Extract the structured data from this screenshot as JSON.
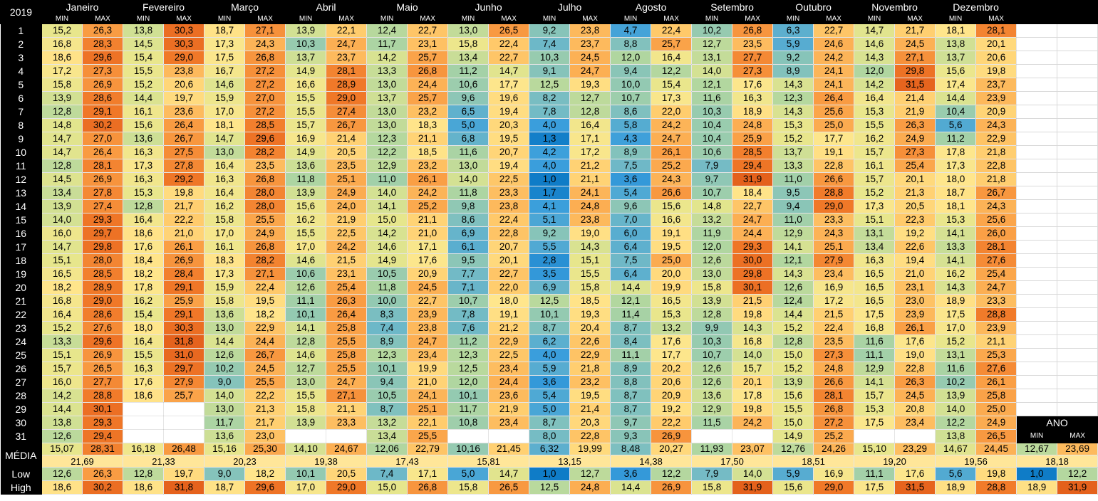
{
  "sheet": {
    "year_label": "2019",
    "months": [
      "Janeiro",
      "Fevereiro",
      "Março",
      "Abril",
      "Maio",
      "Junho",
      "Julho",
      "Agosto",
      "Setembro",
      "Outubro",
      "Novembro",
      "Dezembro"
    ],
    "min_label": "MIN",
    "max_label": "MAX",
    "days": [
      "1",
      "2",
      "3",
      "4",
      "5",
      "6",
      "7",
      "8",
      "9",
      "10",
      "11",
      "12",
      "13",
      "14",
      "15",
      "16",
      "17",
      "18",
      "19",
      "20",
      "21",
      "22",
      "23",
      "24",
      "25",
      "26",
      "27",
      "28",
      "29",
      "30",
      "31"
    ],
    "daily": [
      [
        "15,2",
        "26,3",
        "13,8",
        "30,3",
        "18,7",
        "27,1",
        "13,9",
        "22,1",
        "12,4",
        "22,7",
        "13,0",
        "26,5",
        "9,2",
        "23,8",
        "4,7",
        "22,4",
        "10,2",
        "26,8",
        "6,3",
        "22,7",
        "14,7",
        "21,7",
        "18,1",
        "28,1"
      ],
      [
        "16,8",
        "28,3",
        "14,5",
        "30,3",
        "17,3",
        "24,3",
        "10,3",
        "24,7",
        "11,7",
        "23,1",
        "15,8",
        "22,4",
        "7,4",
        "23,7",
        "8,8",
        "25,7",
        "12,7",
        "23,5",
        "5,9",
        "24,6",
        "14,6",
        "24,5",
        "13,8",
        "20,1"
      ],
      [
        "18,6",
        "29,6",
        "15,4",
        "29,0",
        "17,5",
        "26,8",
        "13,7",
        "23,7",
        "14,2",
        "25,7",
        "13,4",
        "22,7",
        "10,3",
        "24,5",
        "12,0",
        "16,4",
        "13,1",
        "27,7",
        "9,2",
        "24,2",
        "14,3",
        "27,1",
        "13,7",
        "20,6"
      ],
      [
        "17,2",
        "27,3",
        "15,5",
        "23,8",
        "16,7",
        "27,2",
        "14,9",
        "28,1",
        "13,3",
        "26,8",
        "11,2",
        "14,7",
        "9,1",
        "24,7",
        "9,4",
        "12,2",
        "14,0",
        "27,3",
        "8,9",
        "24,1",
        "12,0",
        "29,8",
        "15,6",
        "19,8"
      ],
      [
        "15,8",
        "26,9",
        "15,2",
        "20,6",
        "14,6",
        "27,2",
        "16,6",
        "28,9",
        "13,0",
        "24,4",
        "10,6",
        "17,7",
        "12,5",
        "19,3",
        "10,0",
        "15,4",
        "12,1",
        "17,6",
        "14,3",
        "24,1",
        "14,2",
        "31,5",
        "17,4",
        "23,7"
      ],
      [
        "13,9",
        "28,6",
        "14,4",
        "19,7",
        "15,9",
        "27,0",
        "15,5",
        "29,0",
        "13,7",
        "25,7",
        "9,6",
        "19,6",
        "8,2",
        "12,7",
        "10,7",
        "17,3",
        "11,6",
        "16,3",
        "12,3",
        "26,4",
        "16,4",
        "21,4",
        "14,4",
        "23,9"
      ],
      [
        "12,8",
        "29,1",
        "16,1",
        "23,6",
        "17,0",
        "27,2",
        "15,5",
        "27,4",
        "13,0",
        "23,2",
        "6,5",
        "19,4",
        "7,8",
        "12,8",
        "8,6",
        "22,0",
        "10,3",
        "18,9",
        "14,3",
        "25,6",
        "15,3",
        "21,9",
        "10,4",
        "20,9"
      ],
      [
        "14,8",
        "30,2",
        "15,6",
        "26,4",
        "18,1",
        "28,5",
        "15,7",
        "26,7",
        "13,0",
        "18,3",
        "5,0",
        "20,3",
        "4,0",
        "16,4",
        "5,8",
        "24,2",
        "10,4",
        "24,8",
        "15,3",
        "25,0",
        "15,5",
        "26,3",
        "5,6",
        "24,3"
      ],
      [
        "14,7",
        "27,0",
        "13,6",
        "26,7",
        "14,7",
        "29,6",
        "16,9",
        "21,4",
        "12,3",
        "21,1",
        "6,8",
        "19,5",
        "1,3",
        "17,1",
        "4,3",
        "24,7",
        "10,4",
        "25,9",
        "15,2",
        "17,7",
        "16,2",
        "24,9",
        "11,2",
        "22,9"
      ],
      [
        "14,7",
        "26,4",
        "16,3",
        "27,5",
        "13,0",
        "28,2",
        "14,9",
        "20,5",
        "12,2",
        "18,5",
        "11,6",
        "20,7",
        "4,2",
        "17,2",
        "8,9",
        "26,1",
        "10,6",
        "28,5",
        "13,7",
        "19,1",
        "15,7",
        "27,3",
        "17,8",
        "21,8"
      ],
      [
        "12,8",
        "28,1",
        "17,3",
        "27,8",
        "16,4",
        "23,5",
        "13,6",
        "23,5",
        "12,9",
        "23,2",
        "13,0",
        "19,4",
        "4,0",
        "21,2",
        "7,5",
        "25,2",
        "7,9",
        "29,4",
        "13,3",
        "22,8",
        "16,1",
        "25,4",
        "17,3",
        "22,8"
      ],
      [
        "14,5",
        "26,9",
        "16,3",
        "29,2",
        "16,3",
        "26,8",
        "11,8",
        "25,1",
        "11,0",
        "26,1",
        "14,0",
        "22,5",
        "1,0",
        "21,1",
        "3,6",
        "24,3",
        "9,7",
        "31,9",
        "11,0",
        "26,6",
        "15,7",
        "20,1",
        "18,0",
        "21,8"
      ],
      [
        "13,4",
        "27,8",
        "15,3",
        "19,8",
        "16,4",
        "28,0",
        "13,9",
        "24,9",
        "14,0",
        "24,2",
        "11,8",
        "23,3",
        "1,7",
        "24,1",
        "5,4",
        "26,6",
        "10,7",
        "18,4",
        "9,5",
        "28,8",
        "15,2",
        "21,3",
        "18,7",
        "26,7"
      ],
      [
        "13,9",
        "27,4",
        "12,8",
        "21,7",
        "16,2",
        "28,0",
        "15,6",
        "24,0",
        "14,1",
        "25,2",
        "9,8",
        "23,8",
        "4,1",
        "24,8",
        "9,6",
        "15,6",
        "14,8",
        "22,7",
        "9,4",
        "29,0",
        "17,3",
        "20,5",
        "18,1",
        "24,3"
      ],
      [
        "14,0",
        "29,3",
        "16,4",
        "22,2",
        "15,8",
        "25,5",
        "16,2",
        "21,9",
        "15,0",
        "21,1",
        "8,6",
        "22,4",
        "5,1",
        "23,8",
        "7,0",
        "16,6",
        "13,2",
        "24,7",
        "11,0",
        "23,3",
        "15,1",
        "22,3",
        "15,3",
        "25,6"
      ],
      [
        "16,0",
        "29,7",
        "18,6",
        "21,0",
        "17,0",
        "24,9",
        "15,5",
        "22,5",
        "14,2",
        "21,0",
        "6,9",
        "22,8",
        "9,2",
        "19,0",
        "6,0",
        "19,1",
        "11,9",
        "24,4",
        "12,9",
        "24,3",
        "13,1",
        "19,2",
        "14,1",
        "26,0"
      ],
      [
        "14,7",
        "29,8",
        "17,6",
        "26,1",
        "16,1",
        "26,8",
        "17,0",
        "24,2",
        "14,6",
        "17,1",
        "6,1",
        "20,7",
        "5,5",
        "14,3",
        "6,4",
        "19,5",
        "12,0",
        "29,3",
        "14,1",
        "25,1",
        "13,4",
        "22,6",
        "13,3",
        "28,1"
      ],
      [
        "15,1",
        "28,0",
        "18,4",
        "26,9",
        "18,3",
        "28,2",
        "14,6",
        "21,5",
        "14,9",
        "17,6",
        "9,5",
        "20,1",
        "2,8",
        "15,1",
        "7,5",
        "25,0",
        "12,6",
        "30,0",
        "12,1",
        "27,9",
        "16,3",
        "19,4",
        "14,1",
        "27,6"
      ],
      [
        "16,5",
        "28,5",
        "18,2",
        "28,4",
        "17,3",
        "27,1",
        "10,6",
        "23,1",
        "10,5",
        "20,9",
        "7,7",
        "22,7",
        "3,5",
        "15,5",
        "6,4",
        "20,0",
        "13,0",
        "29,8",
        "14,3",
        "23,4",
        "16,5",
        "21,0",
        "16,2",
        "25,4"
      ],
      [
        "18,2",
        "28,9",
        "17,8",
        "29,1",
        "15,9",
        "22,4",
        "12,6",
        "25,4",
        "11,8",
        "24,5",
        "7,1",
        "22,0",
        "6,9",
        "15,8",
        "14,4",
        "19,9",
        "15,8",
        "30,1",
        "12,6",
        "16,9",
        "16,5",
        "23,1",
        "14,3",
        "24,7"
      ],
      [
        "16,8",
        "29,0",
        "16,2",
        "25,9",
        "15,8",
        "19,5",
        "11,1",
        "26,3",
        "10,0",
        "22,7",
        "10,7",
        "18,0",
        "12,5",
        "18,5",
        "12,1",
        "16,5",
        "13,9",
        "21,5",
        "12,4",
        "17,2",
        "16,5",
        "23,0",
        "18,9",
        "23,3"
      ],
      [
        "16,4",
        "28,6",
        "15,4",
        "29,1",
        "13,6",
        "18,2",
        "10,1",
        "26,4",
        "8,3",
        "23,9",
        "7,8",
        "19,1",
        "10,1",
        "19,3",
        "11,4",
        "15,3",
        "12,8",
        "19,8",
        "14,4",
        "21,5",
        "17,5",
        "23,9",
        "17,5",
        "28,8"
      ],
      [
        "15,2",
        "27,6",
        "18,0",
        "30,3",
        "13,0",
        "22,9",
        "14,1",
        "25,8",
        "7,4",
        "23,8",
        "7,6",
        "21,2",
        "8,7",
        "20,4",
        "8,7",
        "13,2",
        "9,9",
        "14,3",
        "15,2",
        "22,4",
        "16,8",
        "26,1",
        "17,0",
        "23,9"
      ],
      [
        "13,3",
        "29,6",
        "16,4",
        "31,8",
        "14,4",
        "24,4",
        "12,8",
        "25,5",
        "8,9",
        "24,7",
        "11,2",
        "22,9",
        "6,2",
        "22,6",
        "8,4",
        "17,6",
        "10,3",
        "16,8",
        "12,8",
        "23,5",
        "11,6",
        "17,6",
        "15,2",
        "21,1"
      ],
      [
        "15,1",
        "26,9",
        "15,5",
        "31,0",
        "12,6",
        "26,7",
        "14,6",
        "25,8",
        "12,3",
        "23,4",
        "12,3",
        "22,5",
        "4,0",
        "22,9",
        "11,1",
        "17,7",
        "10,7",
        "14,0",
        "15,0",
        "27,3",
        "11,1",
        "19,0",
        "13,1",
        "25,3"
      ],
      [
        "15,7",
        "26,5",
        "16,3",
        "29,7",
        "10,2",
        "24,5",
        "12,7",
        "25,5",
        "10,1",
        "19,9",
        "12,5",
        "23,4",
        "5,9",
        "21,8",
        "8,9",
        "20,2",
        "12,6",
        "15,7",
        "15,2",
        "24,8",
        "12,9",
        "22,8",
        "11,6",
        "27,6"
      ],
      [
        "16,0",
        "27,7",
        "17,6",
        "27,9",
        "9,0",
        "25,5",
        "13,0",
        "24,7",
        "9,4",
        "21,0",
        "12,0",
        "24,4",
        "3,6",
        "23,2",
        "8,8",
        "20,6",
        "12,6",
        "20,1",
        "13,9",
        "26,6",
        "14,1",
        "26,3",
        "10,2",
        "26,1"
      ],
      [
        "14,2",
        "28,8",
        "18,6",
        "25,7",
        "14,0",
        "22,2",
        "15,5",
        "27,1",
        "10,5",
        "24,1",
        "10,1",
        "23,6",
        "5,4",
        "19,5",
        "8,7",
        "20,9",
        "13,6",
        "17,8",
        "15,6",
        "28,1",
        "15,7",
        "24,5",
        "13,9",
        "25,8"
      ],
      [
        "14,4",
        "30,1",
        "",
        "",
        "13,0",
        "21,3",
        "15,8",
        "21,1",
        "8,7",
        "25,1",
        "11,7",
        "21,9",
        "5,0",
        "21,4",
        "8,7",
        "19,2",
        "12,9",
        "19,8",
        "15,5",
        "26,8",
        "15,3",
        "20,8",
        "14,0",
        "25,0"
      ],
      [
        "13,8",
        "29,3",
        "",
        "",
        "11,7",
        "21,7",
        "13,9",
        "23,3",
        "13,2",
        "22,1",
        "10,8",
        "23,4",
        "8,7",
        "20,3",
        "9,7",
        "22,2",
        "11,5",
        "24,2",
        "15,0",
        "27,2",
        "17,5",
        "23,4",
        "12,2",
        "24,9"
      ],
      [
        "12,6",
        "29,4",
        "",
        "",
        "13,6",
        "23,0",
        "",
        "",
        "13,4",
        "25,5",
        "",
        "",
        "8,0",
        "22,8",
        "9,3",
        "26,9",
        "",
        "",
        "14,9",
        "25,2",
        "",
        "",
        "13,8",
        "26,5"
      ]
    ],
    "media_label": "MÉDIA",
    "media_values": [
      "15,07",
      "28,31",
      "16,18",
      "26,48",
      "15,16",
      "25,30",
      "14,10",
      "24,67",
      "12,06",
      "22,79",
      "10,16",
      "21,45",
      "6,32",
      "19,99",
      "8,48",
      "20,27",
      "11,93",
      "23,07",
      "12,76",
      "24,26",
      "15,10",
      "23,29",
      "14,67",
      "24,45"
    ],
    "media_avgs": [
      "21,69",
      "21,33",
      "20,23",
      "19,38",
      "17,43",
      "15,81",
      "13,15",
      "14,38",
      "17,50",
      "18,51",
      "19,20",
      "19,56"
    ],
    "low_label": "Low",
    "low_values": [
      "12,6",
      "26,3",
      "12,8",
      "19,7",
      "9,0",
      "18,2",
      "10,1",
      "20,5",
      "7,4",
      "17,1",
      "5,0",
      "14,7",
      "1,0",
      "12,7",
      "3,6",
      "12,2",
      "7,9",
      "14,0",
      "5,9",
      "16,9",
      "11,1",
      "17,6",
      "5,6",
      "19,8"
    ],
    "high_label": "High",
    "high_values": [
      "18,6",
      "30,2",
      "18,6",
      "31,8",
      "18,7",
      "29,6",
      "17,0",
      "29,0",
      "15,0",
      "26,8",
      "15,8",
      "26,5",
      "12,5",
      "24,8",
      "14,4",
      "26,9",
      "15,8",
      "31,9",
      "15,6",
      "29,0",
      "17,5",
      "31,5",
      "18,9",
      "28,8"
    ],
    "ano": {
      "title": "ANO",
      "min_label": "MIN",
      "max_label": "MAX",
      "media": [
        "12,67",
        "23,69"
      ],
      "media_avg": "18,18",
      "low": [
        "1,0",
        "12,2"
      ],
      "high": [
        "18,9",
        "31,9"
      ]
    }
  }
}
